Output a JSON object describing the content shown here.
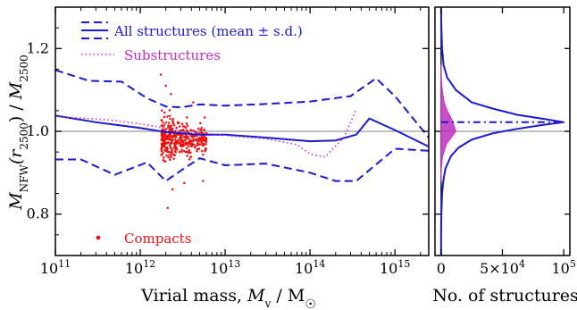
{
  "chart_data": [
    {
      "type": "line",
      "panel": "main",
      "xlabel": {
        "prefix": "Virial mass,  ",
        "sym": "M",
        "sub": "v",
        "unit": " / M"
      },
      "ylabel": {
        "sym1": "M",
        "sub1": "NFW",
        "arg": "(r",
        "argsub": "2500",
        "mid": ") / ",
        "sym2": "M",
        "sub2": "2500"
      },
      "xscale": "log",
      "xlim": [
        100000000000.0,
        2500000000000000.0
      ],
      "ylim": [
        0.7,
        1.3
      ],
      "xticks": [
        {
          "value": 100000000000.0,
          "base": "10",
          "exp": "11"
        },
        {
          "value": 1000000000000.0,
          "base": "10",
          "exp": "12"
        },
        {
          "value": 10000000000000.0,
          "base": "10",
          "exp": "13"
        },
        {
          "value": 100000000000000.0,
          "base": "10",
          "exp": "14"
        },
        {
          "value": 1000000000000000.0,
          "base": "10",
          "exp": "15"
        }
      ],
      "yticks": [
        {
          "value": 0.8,
          "label": "0.8"
        },
        {
          "value": 1.0,
          "label": "1.0"
        },
        {
          "value": 1.2,
          "label": "1.2"
        }
      ],
      "reference_line": 1.0,
      "legend": {
        "placement": "top-left",
        "entries": [
          {
            "label": "All structures  (mean ± s.d.)",
            "color": "#1a1acc",
            "style": "solid-dashed"
          },
          {
            "label": "Substructures",
            "color": "#c030c0",
            "style": "dotted"
          }
        ]
      },
      "annotation": {
        "label": "Compacts",
        "color": "#ee1111"
      },
      "series": [
        {
          "name": "All structures  (mean ± s.d.)",
          "role": "mean",
          "color": "#1a1acc",
          "style": "solid",
          "x": [
            100000000000.0,
            300000000000.0,
            1000000000000.0,
            2000000000000.0,
            5000000000000.0,
            10000000000000.0,
            30000000000000.0,
            100000000000000.0,
            200000000000000.0,
            350000000000000.0,
            500000000000000.0,
            1000000000000000.0,
            2500000000000000.0
          ],
          "y": [
            1.038,
            1.022,
            1.008,
            0.998,
            0.992,
            0.992,
            0.985,
            0.976,
            0.978,
            0.992,
            1.031,
            1.003,
            0.963
          ]
        },
        {
          "name": "mean + s.d.",
          "role": "upper",
          "color": "#1a1acc",
          "style": "dashed",
          "x": [
            100000000000.0,
            250000000000.0,
            600000000000.0,
            1200000000000.0,
            2000000000000.0,
            3000000000000.0,
            5000000000000.0,
            10000000000000.0,
            30000000000000.0,
            100000000000000.0,
            300000000000000.0,
            600000000000000.0,
            1000000000000000.0,
            2500000000000000.0
          ],
          "y": [
            1.148,
            1.122,
            1.12,
            1.08,
            1.06,
            1.058,
            1.065,
            1.062,
            1.066,
            1.072,
            1.085,
            1.128,
            1.085,
            0.985
          ]
        },
        {
          "name": "mean - s.d.",
          "role": "lower",
          "color": "#1a1acc",
          "style": "dashed",
          "x": [
            100000000000.0,
            200000000000.0,
            500000000000.0,
            1200000000000.0,
            2000000000000.0,
            3000000000000.0,
            5000000000000.0,
            10000000000000.0,
            30000000000000.0,
            100000000000000.0,
            200000000000000.0,
            350000000000000.0,
            600000000000000.0,
            1000000000000000.0,
            2500000000000000.0
          ],
          "y": [
            0.932,
            0.932,
            0.895,
            0.925,
            0.88,
            0.905,
            0.935,
            0.918,
            0.922,
            0.9,
            0.88,
            0.88,
            0.92,
            0.958,
            0.953
          ]
        },
        {
          "name": "Substructures",
          "color": "#c030c0",
          "style": "dotted",
          "x": [
            100000000000.0,
            400000000000.0,
            1000000000000.0,
            2000000000000.0,
            3000000000000.0,
            5000000000000.0,
            10000000000000.0,
            30000000000000.0,
            70000000000000.0,
            100000000000000.0,
            150000000000000.0,
            250000000000000.0,
            350000000000000.0
          ],
          "y": [
            1.036,
            1.028,
            1.018,
            1.008,
            1.0,
            0.997,
            0.99,
            0.982,
            0.968,
            0.945,
            0.938,
            0.985,
            1.052
          ]
        }
      ],
      "scatter": {
        "name": "Compacts",
        "color": "#ee1111",
        "seed": 7,
        "count": 400,
        "x_log_range": [
          12.25,
          12.78
        ],
        "y_center": 0.98,
        "y_sd": 0.025,
        "outliers": [
          [
            1750000000000.0,
            1.137
          ],
          [
            2000000000000.0,
            1.11
          ],
          [
            2100000000000.0,
            0.815
          ],
          [
            2400000000000.0,
            0.86
          ],
          [
            3300000000000.0,
            0.875
          ],
          [
            5500000000000.0,
            0.88
          ],
          [
            2300000000000.0,
            1.09
          ],
          [
            4200000000000.0,
            1.07
          ]
        ]
      }
    },
    {
      "type": "line",
      "panel": "histogram",
      "xlabel": "No. of structures",
      "xlim": [
        -5000,
        105000
      ],
      "xticks": [
        {
          "value": 0,
          "base": "0",
          "exp": ""
        },
        {
          "value": 50000,
          "base": "5×10",
          "exp": "4"
        },
        {
          "value": 100000,
          "base": "10",
          "exp": "5"
        }
      ],
      "ylim": [
        0.7,
        1.3
      ],
      "reference_line": 1.0,
      "peak_marker": {
        "y": 1.022,
        "style": "dashdot",
        "color": "#1a1acc"
      },
      "series": [
        {
          "name": "All structures  (mean ± s.d.)",
          "color": "#1a1acc",
          "style": "solid",
          "y": [
            0.7,
            0.75,
            0.8,
            0.85,
            0.88,
            0.91,
            0.94,
            0.96,
            0.98,
            0.995,
            1.005,
            1.015,
            1.022,
            1.03,
            1.04,
            1.055,
            1.07,
            1.1,
            1.13,
            1.16,
            1.2,
            1.25,
            1.3
          ],
          "x": [
            0,
            0,
            200,
            800,
            1800,
            3500,
            8000,
            14000,
            25000,
            42000,
            60000,
            82000,
            100000,
            84000,
            62000,
            42000,
            25000,
            12000,
            5000,
            2000,
            800,
            200,
            0
          ]
        },
        {
          "name": "Substructures",
          "color": "#c030c0",
          "style": "filled",
          "y": [
            0.88,
            0.91,
            0.94,
            0.97,
            0.99,
            1.0,
            1.01,
            1.03,
            1.05,
            1.07,
            1.1,
            1.13,
            1.16
          ],
          "x": [
            0,
            200,
            1200,
            4500,
            9500,
            12000,
            11000,
            8500,
            5000,
            2500,
            900,
            200,
            0
          ]
        }
      ]
    }
  ]
}
